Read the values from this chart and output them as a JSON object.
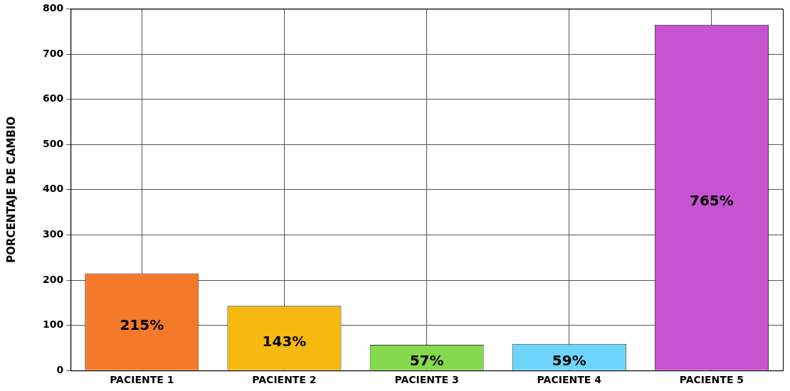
{
  "chart_data": {
    "type": "bar",
    "ylabel": "PORCENTAJE DE CAMBIO",
    "categories": [
      "PACIENTE 1",
      "PACIENTE 2",
      "PACIENTE 3",
      "PACIENTE 4",
      "PACIENTE 5"
    ],
    "values": [
      215,
      143,
      57,
      59,
      765
    ],
    "colors": [
      "#f47a2a",
      "#f5b90f",
      "#85d94c",
      "#6dd5fb",
      "#c653cf"
    ],
    "value_labels": [
      "215%",
      "143%",
      "57%",
      "59%",
      "765%"
    ],
    "ylim": [
      0,
      800
    ],
    "yticks": [
      0,
      100,
      200,
      300,
      400,
      500,
      600,
      700,
      800
    ],
    "grid": true
  }
}
